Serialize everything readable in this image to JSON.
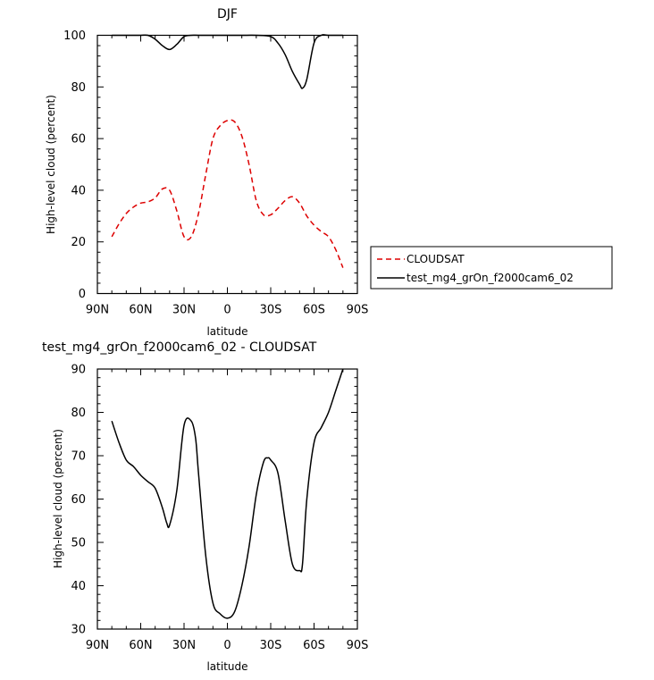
{
  "chart_data": [
    {
      "type": "line",
      "title": "DJF",
      "xlabel": "latitude",
      "ylabel": "High-level cloud (percent)",
      "xlim": [
        90,
        -90
      ],
      "ylim": [
        0,
        100
      ],
      "x_ticks": [
        {
          "value": 90,
          "label": "90N"
        },
        {
          "value": 60,
          "label": "60N"
        },
        {
          "value": 30,
          "label": "30N"
        },
        {
          "value": 0,
          "label": "0"
        },
        {
          "value": -30,
          "label": "30S"
        },
        {
          "value": -60,
          "label": "60S"
        },
        {
          "value": -90,
          "label": "90S"
        }
      ],
      "y_ticks": [
        0,
        20,
        40,
        60,
        80,
        100
      ],
      "legend_position": "right",
      "series": [
        {
          "name": "CLOUDSAT",
          "color": "#dd0000",
          "dash": "dashed",
          "x": [
            80,
            75,
            70,
            65,
            60,
            55,
            50,
            45,
            40,
            35,
            30,
            25,
            20,
            15,
            10,
            5,
            0,
            -5,
            -10,
            -15,
            -20,
            -25,
            -30,
            -35,
            -40,
            -45,
            -50,
            -55,
            -60,
            -65,
            -70,
            -75,
            -80
          ],
          "y": [
            22,
            27,
            31,
            33.5,
            35,
            35.5,
            37,
            40.5,
            40,
            32,
            22,
            22,
            31,
            46,
            60,
            65,
            67,
            66.5,
            61,
            50,
            36,
            30.5,
            30.5,
            33,
            36,
            37.5,
            35,
            30,
            26.5,
            24,
            22,
            17,
            10
          ]
        },
        {
          "name": "test_mg4_grOn_f2000cam6_02",
          "color": "#000000",
          "dash": "solid",
          "x": [
            80,
            70,
            60,
            55,
            50,
            45,
            40,
            35,
            30,
            25,
            20,
            10,
            0,
            -10,
            -20,
            -30,
            -35,
            -40,
            -45,
            -50,
            -52,
            -55,
            -60,
            -65,
            -70,
            -80
          ],
          "y": [
            100,
            100,
            100,
            100,
            98.5,
            96,
            94.5,
            96.5,
            99.5,
            100,
            100,
            100,
            100,
            100,
            100,
            99.5,
            97,
            92.5,
            86,
            81,
            79.5,
            83,
            97,
            100,
            100,
            100
          ]
        }
      ]
    },
    {
      "type": "line",
      "title": "test_mg4_grOn_f2000cam6_02 - CLOUDSAT",
      "xlabel": "latitude",
      "ylabel": "High-level cloud (percent)",
      "xlim": [
        90,
        -90
      ],
      "ylim": [
        30,
        90
      ],
      "x_ticks": [
        {
          "value": 90,
          "label": "90N"
        },
        {
          "value": 60,
          "label": "60N"
        },
        {
          "value": 30,
          "label": "30N"
        },
        {
          "value": 0,
          "label": "0"
        },
        {
          "value": -30,
          "label": "30S"
        },
        {
          "value": -60,
          "label": "60S"
        },
        {
          "value": -90,
          "label": "90S"
        }
      ],
      "y_ticks": [
        30,
        40,
        50,
        60,
        70,
        80,
        90
      ],
      "series": [
        {
          "color": "#000000",
          "dash": "solid",
          "x": [
            80,
            75,
            70,
            65,
            60,
            55,
            50,
            45,
            42,
            40,
            35,
            30,
            25,
            22,
            20,
            15,
            10,
            5,
            0,
            -5,
            -10,
            -15,
            -20,
            -25,
            -28,
            -30,
            -35,
            -40,
            -45,
            -50,
            -52,
            -55,
            -60,
            -65,
            -70,
            -75,
            -80
          ],
          "y": [
            78,
            73,
            69,
            67.5,
            65.5,
            64,
            62.5,
            58,
            54.5,
            54,
            62,
            77,
            78,
            74,
            66,
            47,
            36,
            33.5,
            32.5,
            34,
            40,
            49,
            61,
            68.5,
            69.5,
            69,
            66,
            55,
            45,
            43.5,
            45,
            60,
            73,
            76.5,
            80,
            85,
            90
          ]
        }
      ]
    }
  ]
}
